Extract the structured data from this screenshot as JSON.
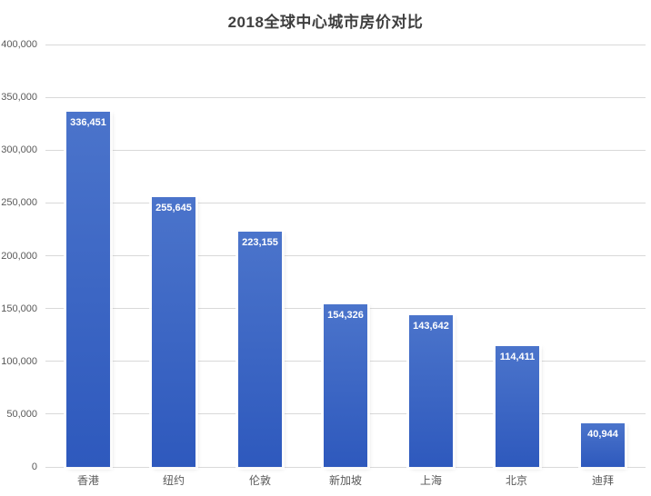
{
  "chart_data": {
    "type": "bar",
    "title": "2018全球中心城市房价对比",
    "categories": [
      "香港",
      "纽约",
      "伦敦",
      "新加坡",
      "上海",
      "北京",
      "迪拜"
    ],
    "values": [
      336451,
      255645,
      223155,
      154326,
      143642,
      114411,
      40944
    ],
    "data_labels": [
      "336,451",
      "255,645",
      "223,155",
      "154,326",
      "143,642",
      "114,411",
      "40,944"
    ],
    "xlabel": "",
    "ylabel": "",
    "ylim": [
      0,
      400000
    ],
    "ytick_step": 50000,
    "ytick_labels": [
      "0",
      "50,000",
      "100,000",
      "150,000",
      "200,000",
      "250,000",
      "300,000",
      "350,000",
      "400,000"
    ],
    "grid": true,
    "legend": "none",
    "colors": {
      "bar_gradient_top": "#4B74CB",
      "bar_gradient_bottom": "#2E59BD",
      "gridline": "#D9D9D9",
      "axis_line": "#D9D9D9",
      "title_text": "#3F3F3F",
      "tick_text": "#595959",
      "data_label_text": "#FFFFFF",
      "background": "#FFFFFF"
    }
  }
}
